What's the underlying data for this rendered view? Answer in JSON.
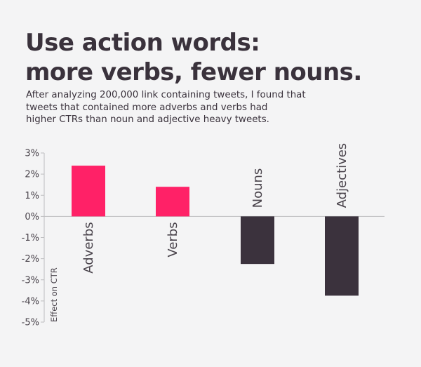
{
  "title_lines": [
    "Use action words:",
    "more verbs, fewer nouns."
  ],
  "subtitle_lines": [
    "After analyzing 200,000 link containing tweets, I found that",
    "tweets that contained more adverbs and verbs had",
    "higher CTRs than noun and adjective heavy tweets."
  ],
  "colors": {
    "positive": "#ff2167",
    "negative": "#3b323d",
    "text": "#3a323c",
    "axis": "#bdbdbf"
  },
  "chart_data": {
    "type": "bar",
    "categories": [
      "Adverbs",
      "Verbs",
      "Nouns",
      "Adjectives"
    ],
    "values": [
      2.4,
      1.4,
      -2.25,
      -3.75
    ],
    "ylabel": "Effect on CTR",
    "ylim": [
      -5,
      3
    ],
    "yticks": [
      3,
      2,
      1,
      0,
      -1,
      -2,
      -3,
      -4,
      -5
    ],
    "ytick_labels": [
      "3%",
      "2%",
      "1%",
      "0%",
      "-1%",
      "-2%",
      "-3%",
      "-4%",
      "-5%"
    ],
    "grid": false,
    "legend": "none"
  }
}
